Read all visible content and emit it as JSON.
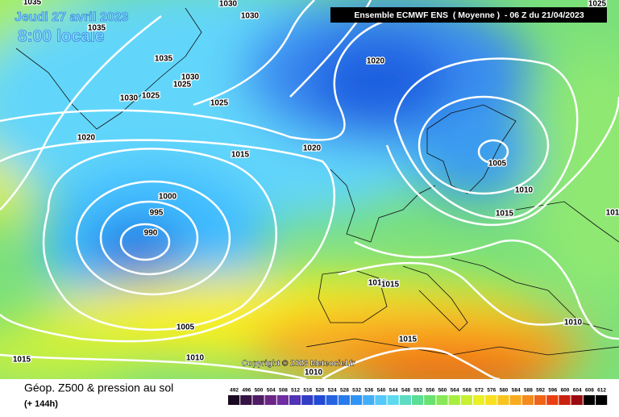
{
  "header": {
    "date": "Jeudi 27 avril 2023",
    "time": "8:00 locale",
    "banner": "Ensemble ECMWF ENS  ( Moyenne )  - 06 Z du 21/04/2023"
  },
  "copyright": "Copyright © 2023 Meteociel.fr",
  "isobar_labels": [
    "1035",
    "1030",
    "1030",
    "1025",
    "1035",
    "1035",
    "1030",
    "1025",
    "1030",
    "1025",
    "1025",
    "1020",
    "1015",
    "1020",
    "1020",
    "1000",
    "995",
    "990",
    "1005",
    "1010",
    "1015",
    "101",
    "1010",
    "1015",
    "1005",
    "1010",
    "1015",
    "1015",
    "1010",
    "1010"
  ],
  "footer": {
    "title": "Géop. Z500 & pression au sol",
    "subtitle": "(+ 144h)"
  },
  "scale": [
    492,
    496,
    500,
    504,
    508,
    512,
    516,
    520,
    524,
    528,
    532,
    536,
    540,
    544,
    548,
    552,
    556,
    560,
    564,
    568,
    572,
    576,
    580,
    584,
    588,
    592,
    596,
    600,
    604,
    608,
    612
  ]
}
